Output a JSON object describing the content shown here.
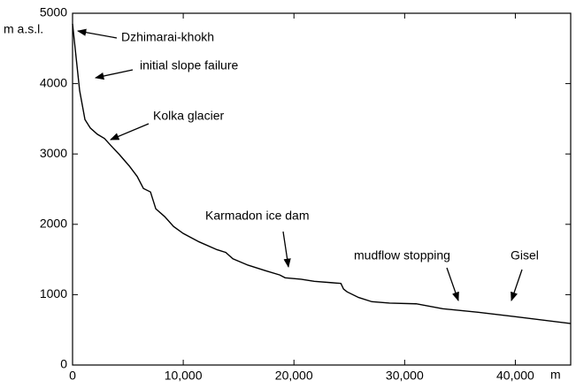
{
  "chart_data": {
    "type": "line",
    "y_label": "m a.s.l.",
    "x_label": "m",
    "x": [
      0,
      640,
      1120,
      1600,
      2240,
      2880,
      3520,
      4240,
      5120,
      5840,
      6400,
      7040,
      7520,
      8320,
      9120,
      10000,
      11440,
      13040,
      13840,
      14480,
      15840,
      17440,
      18720,
      19200,
      20640,
      21840,
      23440,
      24240,
      24480,
      24800,
      25840,
      27040,
      28640,
      31040,
      33440,
      36640,
      39840,
      45000
    ],
    "values": [
      4850,
      3900,
      3490,
      3370,
      3280,
      3220,
      3110,
      2990,
      2830,
      2680,
      2510,
      2460,
      2220,
      2110,
      1970,
      1870,
      1750,
      1640,
      1600,
      1510,
      1420,
      1340,
      1280,
      1240,
      1220,
      1190,
      1170,
      1160,
      1080,
      1040,
      960,
      900,
      880,
      870,
      800,
      750,
      690,
      590
    ],
    "color": "#000000",
    "xlim": [
      0,
      45000
    ],
    "ylim": [
      0,
      5000
    ],
    "xticks": [
      0,
      {
        "value": 10000,
        "label": "10,000"
      },
      {
        "value": 20000,
        "label": "20,000"
      },
      {
        "value": 30000,
        "label": "30,000"
      },
      {
        "value": 40000,
        "label": "40,000"
      }
    ],
    "yticks": [
      0,
      1000,
      2000,
      3000,
      4000,
      5000
    ],
    "grid": false,
    "annotations": [
      "Dzhimarai-khokh",
      "initial slope failure",
      "Kolka glacier",
      "Karmadon ice dam",
      "mudflow stopping",
      "Gisel"
    ]
  }
}
